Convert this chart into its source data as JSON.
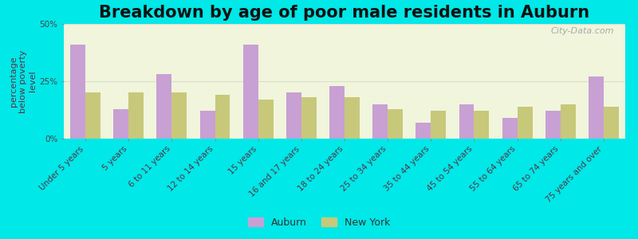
{
  "title": "Breakdown by age of poor male residents in Auburn",
  "ylabel": "percentage\nbelow poverty\nlevel",
  "categories": [
    "Under 5 years",
    "5 years",
    "6 to 11 years",
    "12 to 14 years",
    "15 years",
    "16 and 17 years",
    "18 to 24 years",
    "25 to 34 years",
    "35 to 44 years",
    "45 to 54 years",
    "55 to 64 years",
    "65 to 74 years",
    "75 years and over"
  ],
  "auburn_values": [
    41,
    13,
    28,
    12,
    41,
    20,
    23,
    15,
    7,
    15,
    9,
    12,
    27
  ],
  "newyork_values": [
    20,
    20,
    20,
    19,
    17,
    18,
    18,
    13,
    12,
    12,
    14,
    15,
    14
  ],
  "auburn_color": "#c8a0d4",
  "newyork_color": "#c8c87a",
  "background_color": "#00e8e8",
  "plot_bg_color": "#f0f5dc",
  "ylim": [
    0,
    50
  ],
  "yticks": [
    0,
    25,
    50
  ],
  "ytick_labels": [
    "0%",
    "25%",
    "50%"
  ],
  "title_fontsize": 15,
  "axis_label_fontsize": 8,
  "tick_label_fontsize": 7.5,
  "legend_labels": [
    "Auburn",
    "New York"
  ],
  "bar_width": 0.35,
  "watermark": "City-Data.com"
}
